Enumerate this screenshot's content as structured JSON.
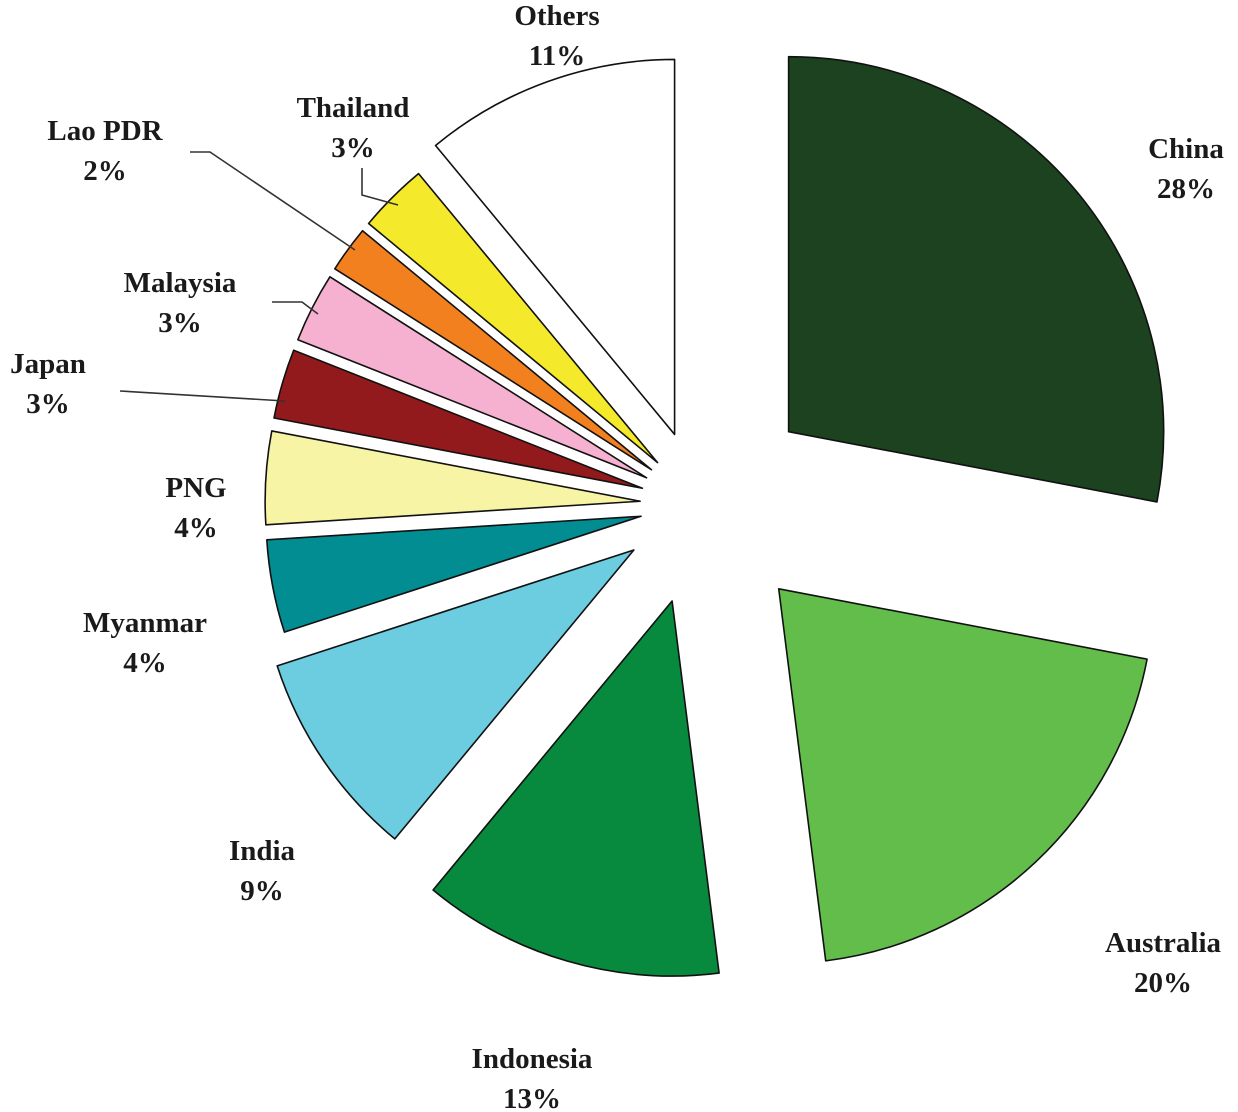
{
  "chart_data": {
    "type": "pie",
    "title": "",
    "slices": [
      {
        "label": "China",
        "value": 28,
        "pct_label": "28%",
        "color": "#1d4220"
      },
      {
        "label": "Australia",
        "value": 20,
        "pct_label": "20%",
        "color": "#62bd4a"
      },
      {
        "label": "Indonesia",
        "value": 13,
        "pct_label": "13%",
        "color": "#078a3d"
      },
      {
        "label": "India",
        "value": 9,
        "pct_label": "9%",
        "color": "#6ccde0"
      },
      {
        "label": "Myanmar",
        "value": 4,
        "pct_label": "4%",
        "color": "#028d92"
      },
      {
        "label": "PNG",
        "value": 4,
        "pct_label": "4%",
        "color": "#f8f4a6"
      },
      {
        "label": "Japan",
        "value": 3,
        "pct_label": "3%",
        "color": "#931a1c"
      },
      {
        "label": "Malaysia",
        "value": 3,
        "pct_label": "3%",
        "color": "#f6b1d1"
      },
      {
        "label": "Lao PDR",
        "value": 2,
        "pct_label": "2%",
        "color": "#f3801f"
      },
      {
        "label": "Thailand",
        "value": 3,
        "pct_label": "3%",
        "color": "#f4e92a"
      },
      {
        "label": "Others",
        "value": 11,
        "pct_label": "11%",
        "color": "#ffffff"
      }
    ],
    "exploded": true,
    "legend": "none",
    "labels": "outside, name and percentage"
  }
}
